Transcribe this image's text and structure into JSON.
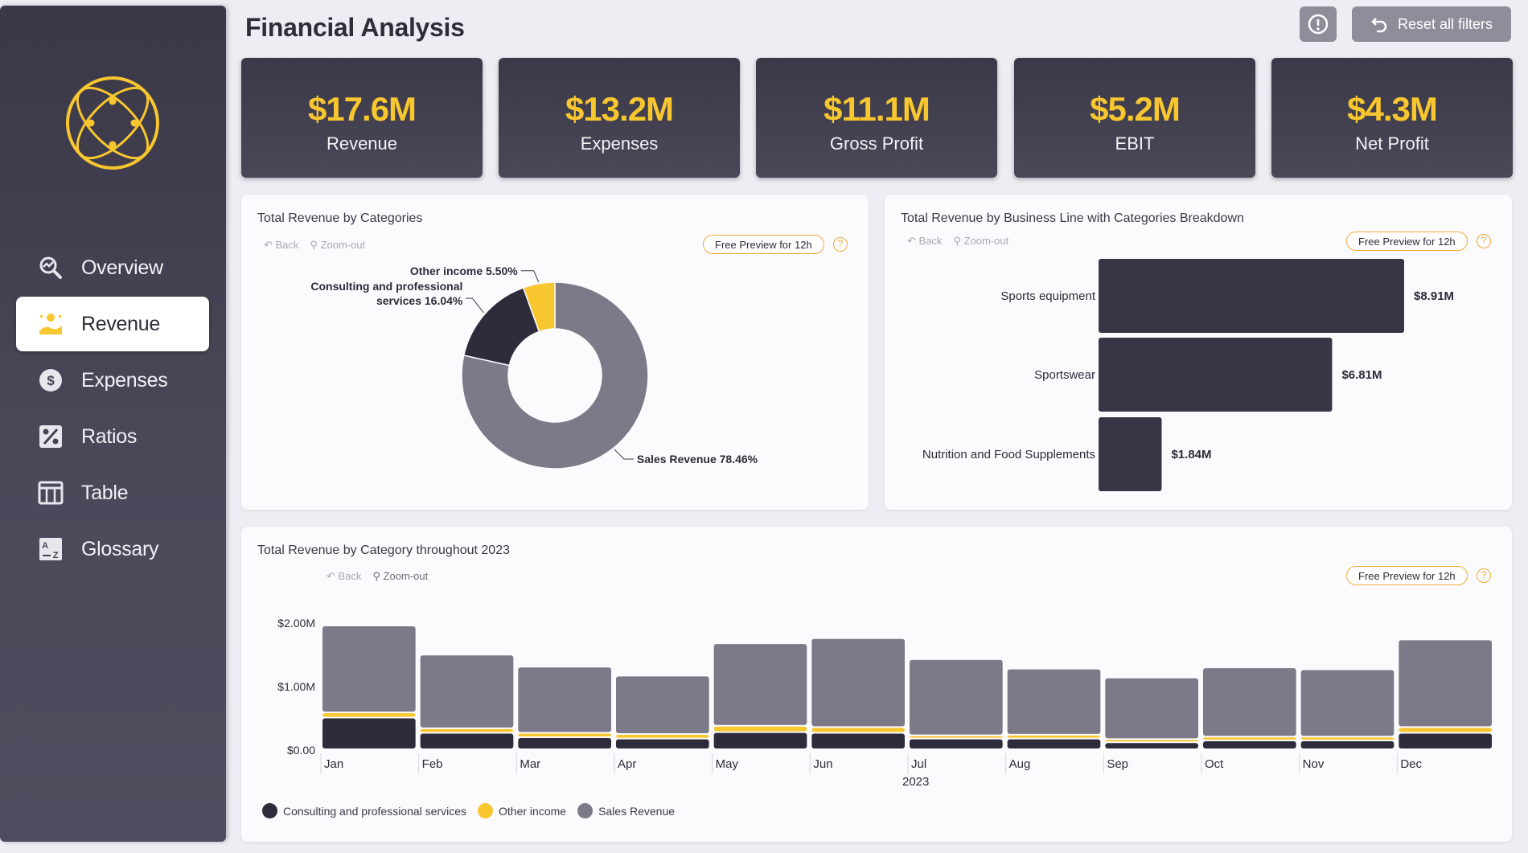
{
  "header": {
    "title": "Financial Analysis",
    "reset_label": "Reset all filters"
  },
  "nav": [
    {
      "label": "Overview",
      "icon": "overview-icon"
    },
    {
      "label": "Revenue",
      "icon": "revenue-icon"
    },
    {
      "label": "Expenses",
      "icon": "dollar-icon"
    },
    {
      "label": "Ratios",
      "icon": "percent-icon"
    },
    {
      "label": "Table",
      "icon": "table-icon"
    },
    {
      "label": "Glossary",
      "icon": "glossary-icon"
    }
  ],
  "active_nav": "Revenue",
  "kpis": [
    {
      "value": "$17.6M",
      "label": "Revenue"
    },
    {
      "value": "$13.2M",
      "label": "Expenses"
    },
    {
      "value": "$11.1M",
      "label": "Gross Profit"
    },
    {
      "value": "$5.2M",
      "label": "EBIT"
    },
    {
      "value": "$4.3M",
      "label": "Net Profit"
    }
  ],
  "tools": {
    "back": "Back",
    "zoom_out": "Zoom-out",
    "preview": "Free Preview for 12h",
    "help": "?"
  },
  "colors": {
    "accent": "#f8c62e",
    "dark": "#2e2c3b",
    "gray": "#7c7a88",
    "sidebar": "#413f4f"
  },
  "chart_data": [
    {
      "type": "pie",
      "title": "Total Revenue by Categories",
      "slices": [
        {
          "label": "Sales Revenue",
          "value": 78.46,
          "display": "Sales Revenue 78.46%",
          "color": "#7c7a88"
        },
        {
          "label": "Consulting and professional services",
          "value": 16.04,
          "display": [
            "Consulting and professional",
            "services 16.04%"
          ],
          "color": "#2e2c3b"
        },
        {
          "label": "Other income",
          "value": 5.5,
          "display": "Other income 5.50%",
          "color": "#f8c62e"
        }
      ]
    },
    {
      "type": "bar",
      "orientation": "horizontal",
      "title": "Total Revenue by Business Line with Categories Breakdown",
      "categories": [
        "Sports equipment",
        "Sportswear",
        "Nutrition and Food Supplements"
      ],
      "values": [
        8.91,
        6.81,
        1.84
      ],
      "labels": [
        "$8.91M",
        "$6.81M",
        "$1.84M"
      ],
      "unit": "$M"
    },
    {
      "type": "bar",
      "stacked": true,
      "title": "Total Revenue by Category throughout 2023",
      "categories": [
        "Jan",
        "Feb",
        "Mar",
        "Apr",
        "May",
        "Jun",
        "Jul",
        "Aug",
        "Sep",
        "Oct",
        "Nov",
        "Dec"
      ],
      "xlabel": "2023",
      "y_ticks": [
        "$0.00",
        "$1.00M",
        "$2.00M"
      ],
      "ylim": [
        0,
        2.0
      ],
      "series": [
        {
          "name": "Consulting and professional services",
          "color": "#2e2c3b",
          "values": [
            0.5,
            0.26,
            0.19,
            0.17,
            0.27,
            0.26,
            0.17,
            0.17,
            0.11,
            0.14,
            0.14,
            0.26
          ]
        },
        {
          "name": "Other income",
          "color": "#f8c62e",
          "values": [
            0.08,
            0.07,
            0.07,
            0.07,
            0.1,
            0.09,
            0.05,
            0.06,
            0.05,
            0.06,
            0.06,
            0.09
          ]
        },
        {
          "name": "Sales Revenue",
          "color": "#7c7a88",
          "values": [
            1.37,
            1.16,
            1.04,
            0.92,
            1.3,
            1.4,
            1.2,
            1.04,
            0.97,
            1.09,
            1.06,
            1.38
          ]
        }
      ]
    }
  ]
}
